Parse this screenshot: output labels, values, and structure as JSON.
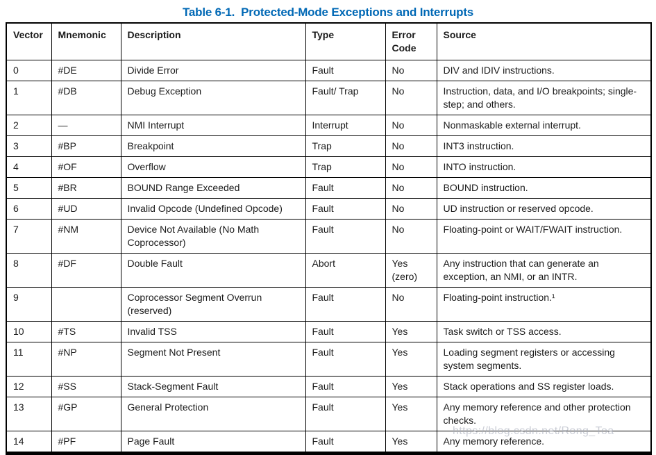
{
  "title": "Table 6-1.  Protected-Mode Exceptions and Interrupts",
  "title_color": "#0068b5",
  "watermark_text": "https://blog.csdn.net/Rong_Toa",
  "table": {
    "columns": {
      "vector": "Vector",
      "mnemonic": "Mnemonic",
      "description": "Description",
      "type": "Type",
      "error_code": "Error Code",
      "source": "Source"
    },
    "rows": [
      {
        "vector": "0",
        "mnemonic": "#DE",
        "description": "Divide Error",
        "type": "Fault",
        "error_code": "No",
        "source": "DIV and IDIV instructions."
      },
      {
        "vector": "1",
        "mnemonic": "#DB",
        "description": "Debug Exception",
        "type": "Fault/ Trap",
        "error_code": "No",
        "source": "Instruction, data, and I/O breakpoints; single-step; and others."
      },
      {
        "vector": "2",
        "mnemonic": "—",
        "description": "NMI Interrupt",
        "type": "Interrupt",
        "error_code": "No",
        "source": "Nonmaskable external interrupt."
      },
      {
        "vector": "3",
        "mnemonic": "#BP",
        "description": "Breakpoint",
        "type": "Trap",
        "error_code": "No",
        "source": "INT3 instruction."
      },
      {
        "vector": "4",
        "mnemonic": "#OF",
        "description": "Overflow",
        "type": "Trap",
        "error_code": "No",
        "source": "INTO instruction."
      },
      {
        "vector": "5",
        "mnemonic": "#BR",
        "description": "BOUND Range Exceeded",
        "type": "Fault",
        "error_code": "No",
        "source": "BOUND instruction."
      },
      {
        "vector": "6",
        "mnemonic": "#UD",
        "description": "Invalid Opcode (Undefined Opcode)",
        "type": "Fault",
        "error_code": "No",
        "source": "UD instruction or reserved opcode."
      },
      {
        "vector": "7",
        "mnemonic": "#NM",
        "description": "Device Not Available (No Math Coprocessor)",
        "type": "Fault",
        "error_code": "No",
        "source": "Floating-point or WAIT/FWAIT instruction."
      },
      {
        "vector": "8",
        "mnemonic": "#DF",
        "description": "Double Fault",
        "type": "Abort",
        "error_code": "Yes (zero)",
        "source": "Any instruction that can generate an exception, an NMI, or an INTR."
      },
      {
        "vector": "9",
        "mnemonic": "",
        "description": "Coprocessor Segment Overrun (reserved)",
        "type": "Fault",
        "error_code": "No",
        "source": "Floating-point instruction.¹"
      },
      {
        "vector": "10",
        "mnemonic": "#TS",
        "description": "Invalid TSS",
        "type": "Fault",
        "error_code": "Yes",
        "source": "Task switch or TSS access."
      },
      {
        "vector": "11",
        "mnemonic": "#NP",
        "description": "Segment Not Present",
        "type": "Fault",
        "error_code": "Yes",
        "source": "Loading segment registers or accessing system segments."
      },
      {
        "vector": "12",
        "mnemonic": "#SS",
        "description": "Stack-Segment Fault",
        "type": "Fault",
        "error_code": "Yes",
        "source": "Stack operations and SS register loads."
      },
      {
        "vector": "13",
        "mnemonic": "#GP",
        "description": "General Protection",
        "type": "Fault",
        "error_code": "Yes",
        "source": "Any memory reference and other protection checks."
      },
      {
        "vector": "14",
        "mnemonic": "#PF",
        "description": "Page Fault",
        "type": "Fault",
        "error_code": "Yes",
        "source": "Any memory reference."
      }
    ]
  }
}
